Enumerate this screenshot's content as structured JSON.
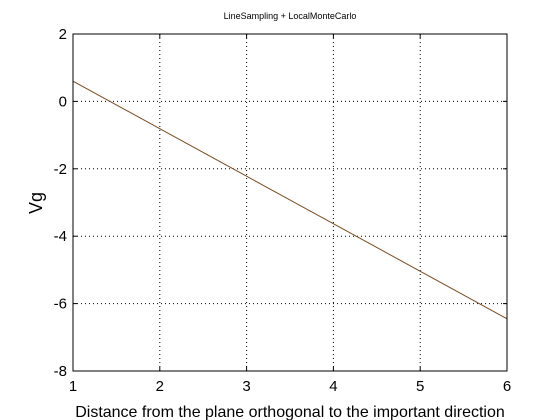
{
  "chart_data": {
    "type": "line",
    "title": "LineSampling + LocalMonteCarlo",
    "xlabel": "Distance from the plane orthogonal to the important direction",
    "ylabel": "Vg",
    "xlim": [
      1,
      6
    ],
    "ylim": [
      -8,
      2
    ],
    "x_ticks": [
      1,
      2,
      3,
      4,
      5,
      6
    ],
    "y_ticks": [
      -8,
      -6,
      -4,
      -2,
      0,
      2
    ],
    "grid": true,
    "series": [
      {
        "color": "#7a4a1e",
        "x": [
          1,
          6
        ],
        "y": [
          0.6,
          -6.45
        ]
      }
    ]
  }
}
